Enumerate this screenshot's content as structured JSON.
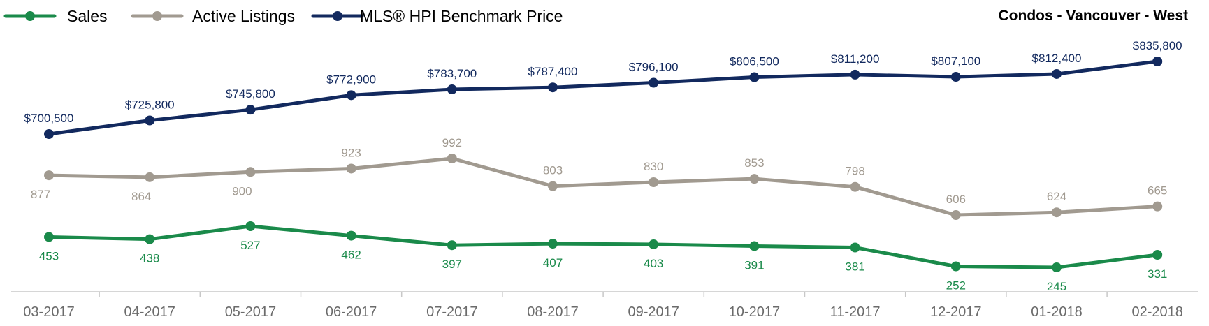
{
  "chart_data": {
    "type": "line",
    "title": "Condos - Vancouver - West",
    "categories": [
      "03-2017",
      "04-2017",
      "05-2017",
      "06-2017",
      "07-2017",
      "08-2017",
      "09-2017",
      "10-2017",
      "11-2017",
      "12-2017",
      "01-2018",
      "02-2018"
    ],
    "series": [
      {
        "name": "Sales",
        "color": "#1a8a4a",
        "values": [
          453,
          438,
          527,
          462,
          397,
          407,
          403,
          391,
          381,
          252,
          245,
          331
        ],
        "labels": [
          "453",
          "438",
          "527",
          "462",
          "397",
          "407",
          "403",
          "391",
          "381",
          "252",
          "245",
          "331"
        ]
      },
      {
        "name": "Active Listings",
        "color": "#a19a90",
        "values": [
          877,
          864,
          900,
          923,
          992,
          803,
          830,
          853,
          798,
          606,
          624,
          665
        ],
        "labels": [
          "877",
          "864",
          "900",
          "923",
          "992",
          "803",
          "830",
          "853",
          "798",
          "606",
          "624",
          "665"
        ]
      },
      {
        "name": "MLS® HPI Benchmark Price",
        "color": "#12295e",
        "values": [
          700500,
          725800,
          745800,
          772900,
          783700,
          787400,
          796100,
          806500,
          811200,
          807100,
          812400,
          835800
        ],
        "labels": [
          "$700,500",
          "$725,800",
          "$745,800",
          "$772,900",
          "$783,700",
          "$787,400",
          "$796,100",
          "$806,500",
          "$811,200",
          "$807,100",
          "$812,400",
          "$835,800"
        ]
      }
    ],
    "legend_position": "top-left",
    "grid": false
  }
}
